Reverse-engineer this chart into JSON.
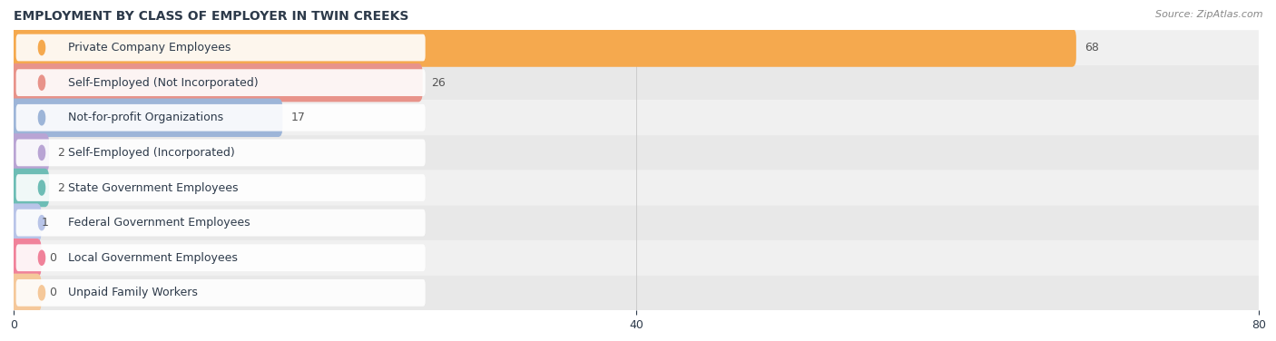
{
  "title": "EMPLOYMENT BY CLASS OF EMPLOYER IN TWIN CREEKS",
  "source": "Source: ZipAtlas.com",
  "categories": [
    "Private Company Employees",
    "Self-Employed (Not Incorporated)",
    "Not-for-profit Organizations",
    "Self-Employed (Incorporated)",
    "State Government Employees",
    "Federal Government Employees",
    "Local Government Employees",
    "Unpaid Family Workers"
  ],
  "values": [
    68,
    26,
    17,
    2,
    2,
    1,
    0,
    0
  ],
  "bar_colors": [
    "#f5a94e",
    "#e8938a",
    "#9db5d8",
    "#b9a4d4",
    "#6dbdb5",
    "#b8c4e8",
    "#f0829a",
    "#f5c89a"
  ],
  "row_bg_colors": [
    "#f0f0f0",
    "#e8e8e8"
  ],
  "xlim": [
    0,
    80
  ],
  "xticks": [
    0,
    40,
    80
  ],
  "title_fontsize": 10,
  "label_fontsize": 9,
  "value_fontsize": 9,
  "source_fontsize": 8,
  "background_color": "#ffffff",
  "title_color": "#2d3a4a",
  "label_color": "#2d3a4a",
  "value_color": "#555555",
  "source_color": "#888888",
  "grid_color": "#cccccc"
}
